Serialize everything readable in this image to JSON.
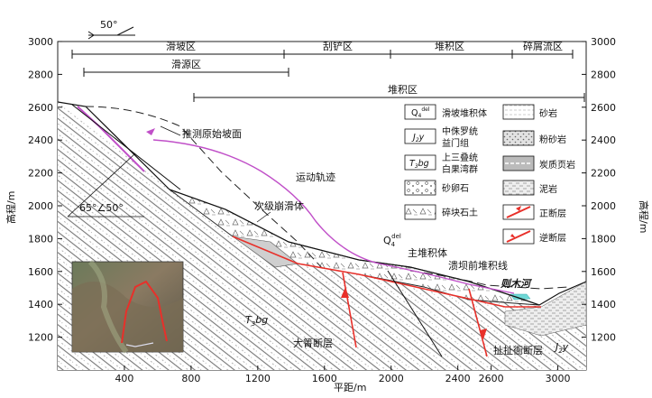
{
  "axes": {
    "xlabel": "平距/m",
    "ylabel_left": "高程/m",
    "ylabel_right": "高程/m",
    "x_ticks": [
      "400",
      "800",
      "1200",
      "1600",
      "2000",
      "2400",
      "2600",
      "3000"
    ],
    "y_ticks": [
      "1200",
      "1400",
      "1600",
      "1800",
      "2000",
      "2200",
      "2400",
      "2600",
      "2800",
      "3000"
    ]
  },
  "orientation": {
    "angle": "50°"
  },
  "zones_row1": [
    "滑坡区",
    "刮铲区",
    "堆积区",
    "碎屑流区"
  ],
  "zones_row2": [
    "滑源区"
  ],
  "zones_row3": [
    "堆积区"
  ],
  "annotations": {
    "original_slope": "推测原始坡面",
    "trajectory": "运动轨迹",
    "secondary": "次级崩滑体",
    "q4_main": "Q",
    "q4_sup": "del",
    "q4_sub": "4",
    "main_deposit": "主堆积体",
    "dam_line": "溃坝前堆积线",
    "river": "则木河",
    "t3bg_main": "T",
    "t3bg_sub": "3",
    "t3bg_tail": "bg",
    "j2y_main": "J",
    "j2y_sub": "2",
    "j2y_tail": "y",
    "dagu_fault": "大箐断层",
    "zhache_fault": "扯扯衙断层",
    "dip": "65°∠50°"
  },
  "legend": {
    "q4_label": "滑坡堆积体",
    "j2y_label_1": "中侏罗统",
    "j2y_label_2": "益门组",
    "t3bg_label_1": "上三叠统",
    "t3bg_label_2": "白果湾群",
    "gravel_label": "砂卵石",
    "rubble_label": "碎块石土",
    "sandstone": "砂岩",
    "siltstone": "粉砂岩",
    "carb_shale": "炭质页岩",
    "mudstone": "泥岩",
    "normal_fault": "正断层",
    "reverse_fault": "逆断层"
  },
  "colors": {
    "fault": "#e8302a",
    "trajectory": "#c04fc8",
    "river": "#6fd8d6"
  }
}
